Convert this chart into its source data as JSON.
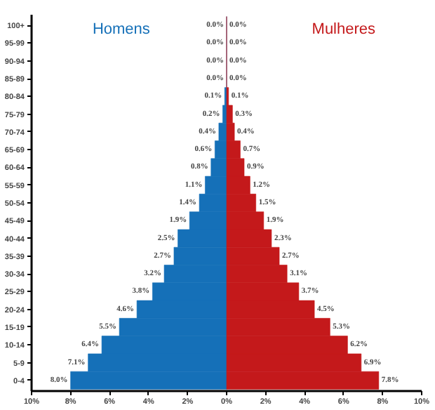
{
  "chart_data": {
    "type": "bar",
    "orientation": "horizontal",
    "categories": [
      "100+",
      "95-99",
      "90-94",
      "85-89",
      "80-84",
      "75-79",
      "70-74",
      "65-69",
      "60-64",
      "55-59",
      "50-54",
      "45-49",
      "40-44",
      "35-39",
      "30-34",
      "25-29",
      "20-24",
      "15-19",
      "10-14",
      "5-9",
      "0-4"
    ],
    "series": [
      {
        "name": "Homens",
        "color": "#1570b8",
        "base": [
          -0.0,
          -0.0,
          -0.0,
          -0.0,
          -0.1,
          -0.2,
          -0.4,
          -0.6,
          -0.8,
          -1.1,
          -1.4,
          -1.9,
          -2.5,
          -2.7,
          -3.2,
          -3.8,
          -4.6,
          -5.5,
          -6.4,
          -7.1,
          -8.0
        ],
        "values": [
          0.0,
          0.0,
          0.0,
          0.0,
          0.1,
          0.2,
          0.4,
          0.6,
          0.8,
          1.1,
          1.4,
          1.9,
          2.5,
          2.7,
          3.2,
          3.8,
          4.6,
          5.5,
          6.4,
          7.1,
          8.0
        ],
        "value_labels": [
          "0.0%",
          "0.0%",
          "0.0%",
          "0.0%",
          "0.1%",
          "0.2%",
          "0.4%",
          "0.6%",
          "0.8%",
          "1.1%",
          "1.4%",
          "1.9%",
          "2.5%",
          "2.7%",
          "3.2%",
          "3.8%",
          "4.6%",
          "5.5%",
          "6.4%",
          "7.1%",
          "8.0%"
        ]
      },
      {
        "name": "Mulheres",
        "color": "#c4191b",
        "values": [
          0.0,
          0.0,
          0.0,
          0.0,
          0.1,
          0.3,
          0.4,
          0.7,
          0.9,
          1.2,
          1.5,
          1.9,
          2.3,
          2.7,
          3.1,
          3.7,
          4.5,
          5.3,
          6.2,
          6.9,
          7.8
        ],
        "value_labels": [
          "0.0%",
          "0.0%",
          "0.0%",
          "0.0%",
          "0.1%",
          "0.3%",
          "0.4%",
          "0.7%",
          "0.9%",
          "1.2%",
          "1.5%",
          "1.9%",
          "2.3%",
          "2.7%",
          "3.1%",
          "3.7%",
          "4.5%",
          "5.3%",
          "6.2%",
          "6.9%",
          "7.8%"
        ]
      }
    ],
    "xlim": [
      -10,
      10
    ],
    "xticks": [
      {
        "value": -10,
        "label": "10%"
      },
      {
        "value": -8,
        "label": "8%"
      },
      {
        "value": -6,
        "label": "6%"
      },
      {
        "value": -4,
        "label": "4%"
      },
      {
        "value": -2,
        "label": "2%"
      },
      {
        "value": 0,
        "label": "0%"
      },
      {
        "value": 2,
        "label": "2%"
      },
      {
        "value": 4,
        "label": "4%"
      },
      {
        "value": 6,
        "label": "6%"
      },
      {
        "value": 8,
        "label": "8%"
      },
      {
        "value": 10,
        "label": "10%"
      }
    ],
    "grid": false
  }
}
